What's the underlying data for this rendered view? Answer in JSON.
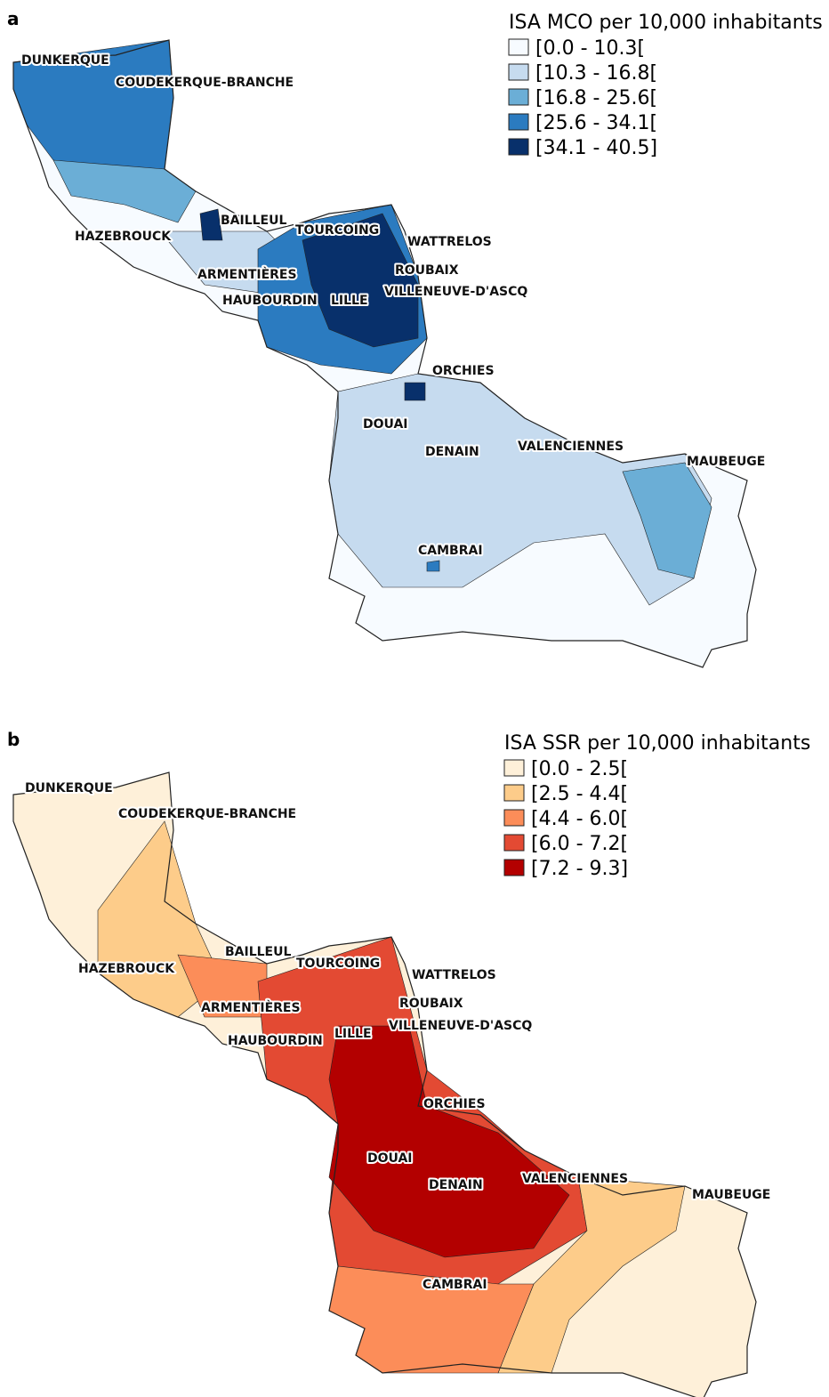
{
  "panels": [
    {
      "label": "a",
      "legend": {
        "title": "ISA MCO per 10,000 inhabitants",
        "classes": [
          {
            "label": "[0.0 - 10.3[",
            "color": "#f7fbff"
          },
          {
            "label": "[10.3 - 16.8[",
            "color": "#c6dbef"
          },
          {
            "label": "[16.8 - 25.6[",
            "color": "#6baed6"
          },
          {
            "label": "[25.6 - 34.1[",
            "color": "#2b7bc0"
          },
          {
            "label": "[34.1 - 40.5]",
            "color": "#08306b"
          }
        ]
      },
      "cities": [
        "DUNKERQUE",
        "COUDEKERQUE-BRANCHE",
        "BAILLEUL",
        "HAZEBROUCK",
        "TOURCOING",
        "WATTRELOS",
        "ARMENTIÈRES",
        "ROUBAIX",
        "HAUBOURDIN",
        "LILLE",
        "VILLENEUVE-D'ASCQ",
        "ORCHIES",
        "DOUAI",
        "DENAIN",
        "VALENCIENNES",
        "MAUBEUGE",
        "CAMBRAI"
      ]
    },
    {
      "label": "b",
      "legend": {
        "title": "ISA SSR per 10,000 inhabitants",
        "classes": [
          {
            "label": "[0.0 - 2.5[",
            "color": "#fef0d9"
          },
          {
            "label": "[2.5 - 4.4[",
            "color": "#fdcc8a"
          },
          {
            "label": "[4.4 - 6.0[",
            "color": "#fc8d59"
          },
          {
            "label": "[6.0 - 7.2[",
            "color": "#e34a33"
          },
          {
            "label": "[7.2 - 9.3]",
            "color": "#b30000"
          }
        ]
      },
      "cities": [
        "DUNKERQUE",
        "COUDEKERQUE-BRANCHE",
        "BAILLEUL",
        "HAZEBROUCK",
        "TOURCOING",
        "WATTRELOS",
        "ARMENTIÈRES",
        "ROUBAIX",
        "HAUBOURDIN",
        "LILLE",
        "VILLENEUVE-D'ASCQ",
        "ORCHIES",
        "DOUAI",
        "DENAIN",
        "VALENCIENNES",
        "MAUBEUGE",
        "CAMBRAI"
      ]
    }
  ]
}
